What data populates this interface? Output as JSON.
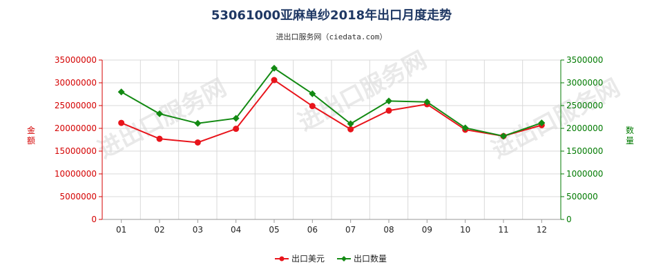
{
  "page": {
    "title": "53061000亚麻单纱2018年出口月度走势",
    "subtitle": "进出口服务网（ciedata.com）",
    "watermark": "进出口服务网"
  },
  "colors": {
    "usd": "#e8141b",
    "qty": "#138a13",
    "left_axis": "#d40000",
    "right_axis": "#007a00",
    "grid": "#d9d9d9"
  },
  "chart_data": {
    "type": "line",
    "categories": [
      "01",
      "02",
      "03",
      "04",
      "05",
      "06",
      "07",
      "08",
      "09",
      "10",
      "11",
      "12"
    ],
    "grid": true,
    "legend_position": "bottom-center",
    "y_left": {
      "label": "金额",
      "ylim": [
        0,
        35000000
      ],
      "ticks": [
        "0",
        "5000000",
        "10000000",
        "15000000",
        "20000000",
        "25000000",
        "30000000",
        "35000000"
      ]
    },
    "y_right": {
      "label": "数量",
      "ylim": [
        0,
        3500000
      ],
      "ticks": [
        "0",
        "500000",
        "1000000",
        "1500000",
        "2000000",
        "2500000",
        "3000000",
        "3500000"
      ]
    },
    "series": [
      {
        "name": "出口美元",
        "axis": "left",
        "marker": "circle",
        "values": [
          21200000,
          17700000,
          16900000,
          19900000,
          30600000,
          24900000,
          19800000,
          23900000,
          25300000,
          19700000,
          18300000,
          20700000
        ]
      },
      {
        "name": "出口数量",
        "axis": "right",
        "marker": "diamond",
        "values": [
          2800000,
          2320000,
          2110000,
          2220000,
          3320000,
          2760000,
          2100000,
          2600000,
          2580000,
          2010000,
          1830000,
          2120000
        ]
      }
    ]
  }
}
